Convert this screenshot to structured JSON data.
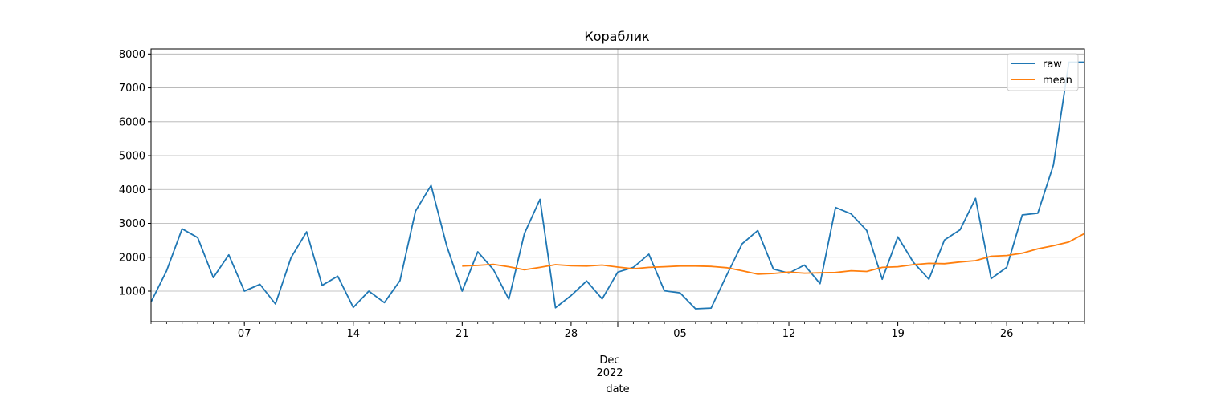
{
  "chart_data": {
    "type": "line",
    "title": "Кораблик",
    "xlabel": "date",
    "ylabel": "",
    "x_start": "2022-11-01",
    "x_end": "2022-12-31",
    "ylim": [
      100,
      8150
    ],
    "y_ticks": [
      1000,
      2000,
      3000,
      4000,
      5000,
      6000,
      7000,
      8000
    ],
    "x_ticks": [
      {
        "date": "2022-11-07",
        "label": "07"
      },
      {
        "date": "2022-11-14",
        "label": "14"
      },
      {
        "date": "2022-11-21",
        "label": "21"
      },
      {
        "date": "2022-11-28",
        "label": "28"
      },
      {
        "date": "2022-12-05",
        "label": "05"
      },
      {
        "date": "2022-12-12",
        "label": "12"
      },
      {
        "date": "2022-12-19",
        "label": "19"
      },
      {
        "date": "2022-12-26",
        "label": "26"
      }
    ],
    "month_label": "Dec",
    "year_label": "2022",
    "month_boundary": "2022-12-01",
    "grid": true,
    "legend_position": "top-right",
    "series": [
      {
        "name": "raw",
        "color": "#1f77b4",
        "x": [
          "2022-11-01",
          "2022-11-02",
          "2022-11-03",
          "2022-11-04",
          "2022-11-05",
          "2022-11-06",
          "2022-11-07",
          "2022-11-08",
          "2022-11-09",
          "2022-11-10",
          "2022-11-11",
          "2022-11-12",
          "2022-11-13",
          "2022-11-14",
          "2022-11-15",
          "2022-11-16",
          "2022-11-17",
          "2022-11-18",
          "2022-11-19",
          "2022-11-20",
          "2022-11-21",
          "2022-11-22",
          "2022-11-23",
          "2022-11-24",
          "2022-11-25",
          "2022-11-26",
          "2022-11-27",
          "2022-11-28",
          "2022-11-29",
          "2022-11-30",
          "2022-12-01",
          "2022-12-02",
          "2022-12-03",
          "2022-12-04",
          "2022-12-05",
          "2022-12-06",
          "2022-12-07",
          "2022-12-08",
          "2022-12-09",
          "2022-12-10",
          "2022-12-11",
          "2022-12-12",
          "2022-12-13",
          "2022-12-14",
          "2022-12-15",
          "2022-12-16",
          "2022-12-17",
          "2022-12-18",
          "2022-12-19",
          "2022-12-20",
          "2022-12-21",
          "2022-12-22",
          "2022-12-23",
          "2022-12-24",
          "2022-12-25",
          "2022-12-26",
          "2022-12-27",
          "2022-12-28",
          "2022-12-29",
          "2022-12-30",
          "2022-12-31"
        ],
        "y": [
          680,
          1600,
          2840,
          2580,
          1400,
          2070,
          1000,
          1200,
          620,
          1990,
          2750,
          1170,
          1440,
          520,
          1000,
          660,
          1310,
          3360,
          4120,
          2340,
          1000,
          2160,
          1640,
          760,
          2700,
          3710,
          510,
          870,
          1300,
          770,
          1560,
          1700,
          2090,
          1010,
          950,
          480,
          500,
          1470,
          2400,
          2790,
          1650,
          1530,
          1770,
          1220,
          3470,
          3280,
          2790,
          1350,
          2600,
          1850,
          1350,
          2510,
          2810,
          3740,
          1370,
          1700,
          3250,
          3300,
          4720,
          7760,
          7760
        ]
      },
      {
        "name": "mean",
        "color": "#ff7f0e",
        "x": [
          "2022-11-21",
          "2022-11-22",
          "2022-11-23",
          "2022-11-24",
          "2022-11-25",
          "2022-11-26",
          "2022-11-27",
          "2022-11-28",
          "2022-11-29",
          "2022-11-30",
          "2022-12-01",
          "2022-12-02",
          "2022-12-03",
          "2022-12-04",
          "2022-12-05",
          "2022-12-06",
          "2022-12-07",
          "2022-12-08",
          "2022-12-09",
          "2022-12-10",
          "2022-12-11",
          "2022-12-12",
          "2022-12-13",
          "2022-12-14",
          "2022-12-15",
          "2022-12-16",
          "2022-12-17",
          "2022-12-18",
          "2022-12-19",
          "2022-12-20",
          "2022-12-21",
          "2022-12-22",
          "2022-12-23",
          "2022-12-24",
          "2022-12-25",
          "2022-12-26",
          "2022-12-27",
          "2022-12-28",
          "2022-12-29",
          "2022-12-30",
          "2022-12-31"
        ],
        "y": [
          1740,
          1760,
          1790,
          1720,
          1630,
          1700,
          1780,
          1750,
          1740,
          1770,
          1710,
          1660,
          1700,
          1720,
          1740,
          1740,
          1730,
          1690,
          1600,
          1500,
          1520,
          1560,
          1530,
          1540,
          1550,
          1600,
          1580,
          1700,
          1720,
          1780,
          1820,
          1810,
          1860,
          1900,
          2030,
          2050,
          2120,
          2250,
          2340,
          2450,
          2700
        ]
      }
    ]
  }
}
